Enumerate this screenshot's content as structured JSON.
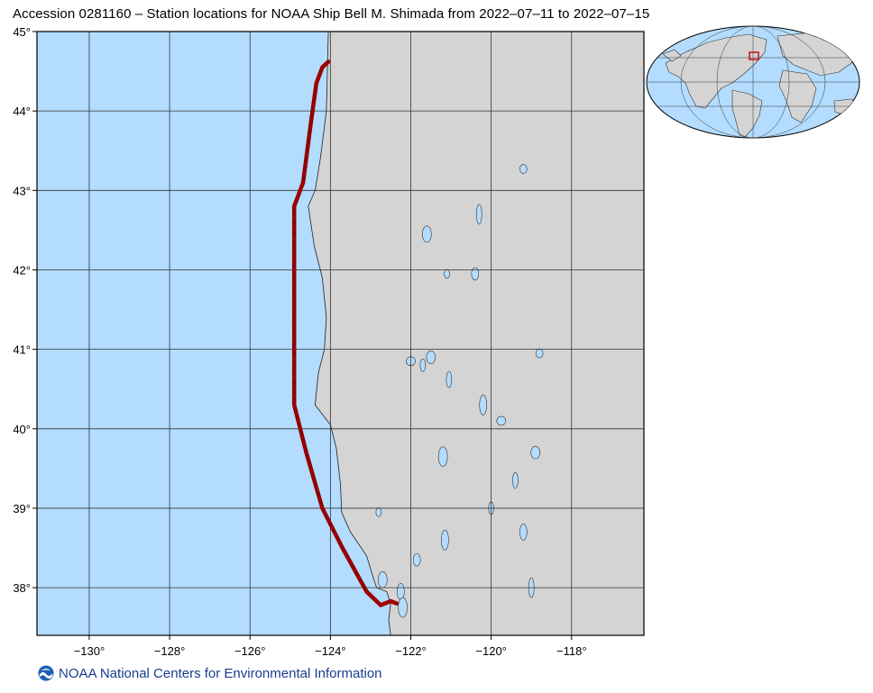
{
  "title": "Accession 0281160 – Station locations for NOAA Ship Bell M. Shimada from 2022–07–11 to 2022–07–15",
  "footer": {
    "org": "NOAA National Centers for Environmental Information",
    "logo_icon": "noaa-logo-icon"
  },
  "colors": {
    "ocean": "#b3dcff",
    "land": "#d4d4d4",
    "track": "#8b0000",
    "frame": "#000000",
    "grid": "#333333"
  },
  "map": {
    "lon_range": [
      -131.3,
      -116.2
    ],
    "lat_range": [
      37.4,
      45.0
    ],
    "lon_ticks": [
      {
        "value": -130,
        "label": "−130°"
      },
      {
        "value": -128,
        "label": "−128°"
      },
      {
        "value": -126,
        "label": "−126°"
      },
      {
        "value": -124,
        "label": "−124°"
      },
      {
        "value": -122,
        "label": "−122°"
      },
      {
        "value": -120,
        "label": "−120°"
      },
      {
        "value": -118,
        "label": "−118°"
      }
    ],
    "lat_ticks": [
      {
        "value": 45,
        "label": "45°"
      },
      {
        "value": 44,
        "label": "44°"
      },
      {
        "value": 43,
        "label": "43°"
      },
      {
        "value": 42,
        "label": "42°"
      },
      {
        "value": 41,
        "label": "41°"
      },
      {
        "value": 40,
        "label": "40°"
      },
      {
        "value": 39,
        "label": "39°"
      },
      {
        "value": 38,
        "label": "38°"
      }
    ],
    "ship_track": [
      [
        -124.05,
        44.62
      ],
      [
        -124.2,
        44.55
      ],
      [
        -124.35,
        44.35
      ],
      [
        -124.5,
        43.8
      ],
      [
        -124.68,
        43.1
      ],
      [
        -124.9,
        42.8
      ],
      [
        -124.9,
        42.0
      ],
      [
        -124.9,
        41.0
      ],
      [
        -124.9,
        40.3
      ],
      [
        -124.6,
        39.7
      ],
      [
        -124.2,
        39.0
      ],
      [
        -123.7,
        38.5
      ],
      [
        -123.1,
        37.95
      ],
      [
        -122.75,
        37.78
      ],
      [
        -122.5,
        37.83
      ],
      [
        -122.35,
        37.8
      ]
    ],
    "coastline": [
      [
        -124.05,
        45.0
      ],
      [
        -124.07,
        44.6
      ],
      [
        -124.1,
        44.0
      ],
      [
        -124.25,
        43.4
      ],
      [
        -124.38,
        43.0
      ],
      [
        -124.55,
        42.8
      ],
      [
        -124.4,
        42.3
      ],
      [
        -124.2,
        41.9
      ],
      [
        -124.1,
        41.4
      ],
      [
        -124.15,
        41.0
      ],
      [
        -124.3,
        40.7
      ],
      [
        -124.38,
        40.3
      ],
      [
        -124.0,
        40.05
      ],
      [
        -123.85,
        39.75
      ],
      [
        -123.75,
        39.3
      ],
      [
        -123.72,
        38.95
      ],
      [
        -123.5,
        38.7
      ],
      [
        -123.1,
        38.4
      ],
      [
        -122.95,
        38.15
      ],
      [
        -122.85,
        38.0
      ],
      [
        -122.6,
        37.95
      ],
      [
        -122.5,
        37.8
      ],
      [
        -122.55,
        37.6
      ],
      [
        -122.5,
        37.4
      ]
    ],
    "lakes": [
      [
        -121.1,
        41.95
      ],
      [
        -120.4,
        41.95
      ],
      [
        -121.6,
        42.45
      ],
      [
        -120.3,
        42.7
      ],
      [
        -119.2,
        43.27
      ],
      [
        -121.5,
        40.9
      ],
      [
        -121.05,
        40.62
      ],
      [
        -120.2,
        40.3
      ],
      [
        -119.75,
        40.1
      ],
      [
        -120.0,
        39.0
      ],
      [
        -119.2,
        38.7
      ],
      [
        -121.2,
        39.65
      ],
      [
        -122.8,
        38.95
      ],
      [
        -121.85,
        38.35
      ],
      [
        -122.7,
        38.1
      ],
      [
        -119.0,
        38.0
      ],
      [
        -118.8,
        40.95
      ],
      [
        -118.9,
        39.7
      ],
      [
        -119.4,
        39.35
      ],
      [
        -121.15,
        38.6
      ],
      [
        -122.0,
        40.85
      ],
      [
        -121.7,
        40.8
      ],
      [
        -122.25,
        37.95
      ],
      [
        -122.2,
        37.75
      ]
    ]
  },
  "inset": {
    "box_center_lon": -123.7,
    "box_center_lat": 41.2
  }
}
